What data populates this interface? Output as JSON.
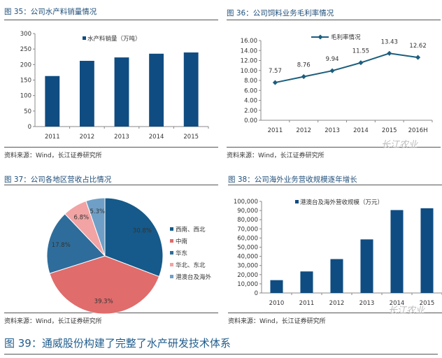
{
  "chart_data": [
    {
      "type": "bar",
      "title": "图 35：公司水产料销量情况",
      "categories": [
        "2011",
        "2012",
        "2013",
        "2014",
        "2015"
      ],
      "series": [
        {
          "name": "水产料销量（万吨）",
          "values": [
            163,
            212,
            223,
            235,
            239
          ]
        }
      ],
      "ylim": [
        0,
        300
      ],
      "yticks": [
        "0",
        "50",
        "100",
        "150",
        "200",
        "250",
        "300"
      ],
      "source": "资料来源：Wind，长江证券研究所",
      "color": "#0f4c81"
    },
    {
      "type": "line",
      "title": "图 36：公司饲料业务毛利率情况",
      "categories": [
        "2011",
        "2012",
        "2013",
        "2014",
        "2015",
        "2016H"
      ],
      "series": [
        {
          "name": "毛利率情况",
          "values": [
            7.57,
            8.76,
            9.94,
            11.55,
            13.43,
            12.62
          ]
        }
      ],
      "labels": [
        "7.57",
        "8.76",
        "9.94",
        "11.55",
        "13.43",
        "12.62"
      ],
      "ylim": [
        0,
        16
      ],
      "yticks": [
        "0.00",
        "2.00",
        "4.00",
        "6.00",
        "8.00",
        "10.00",
        "12.00",
        "14.00",
        "16.00"
      ],
      "source": "资料来源：Wind，长江证券研究所",
      "color": "#1b5e7e"
    },
    {
      "type": "pie",
      "title": "图 37：公司各地区营收占比情况",
      "categories": [
        "西南、西北",
        "中南",
        "华东",
        "华北、东北",
        "港澳台及海外"
      ],
      "values": [
        30.8,
        39.3,
        17.8,
        6.8,
        5.3
      ],
      "labels": [
        "30.8%",
        "39.3%",
        "17.8%",
        "6.8%",
        "5.3%"
      ],
      "colors": [
        "#155a8a",
        "#e06c6c",
        "#2e6d9b",
        "#f2a3a3",
        "#6f9fc6"
      ],
      "legend": "right",
      "source": "资料来源：Wind，长江证券研究所"
    },
    {
      "type": "bar",
      "title": "图 38：公司海外业务营收规模逐年增长",
      "categories": [
        "2010",
        "2011",
        "2012",
        "2013",
        "2014",
        "2015"
      ],
      "series": [
        {
          "name": "港澳台及海外营收规模（万元）",
          "values": [
            14000,
            23500,
            37000,
            58500,
            90500,
            92500
          ]
        }
      ],
      "ylim": [
        0,
        100000
      ],
      "yticks": [
        "0",
        "10,000",
        "20,000",
        "30,000",
        "40,000",
        "50,000",
        "60,000",
        "70,000",
        "80,000",
        "90,000",
        "100,000"
      ],
      "source": "资料来源：Wind，长江证券研究所",
      "color": "#0f4c81"
    }
  ],
  "footer_title": "图 39：通威股份构建了完整了水产研发技术体系",
  "watermark": "长江农业"
}
